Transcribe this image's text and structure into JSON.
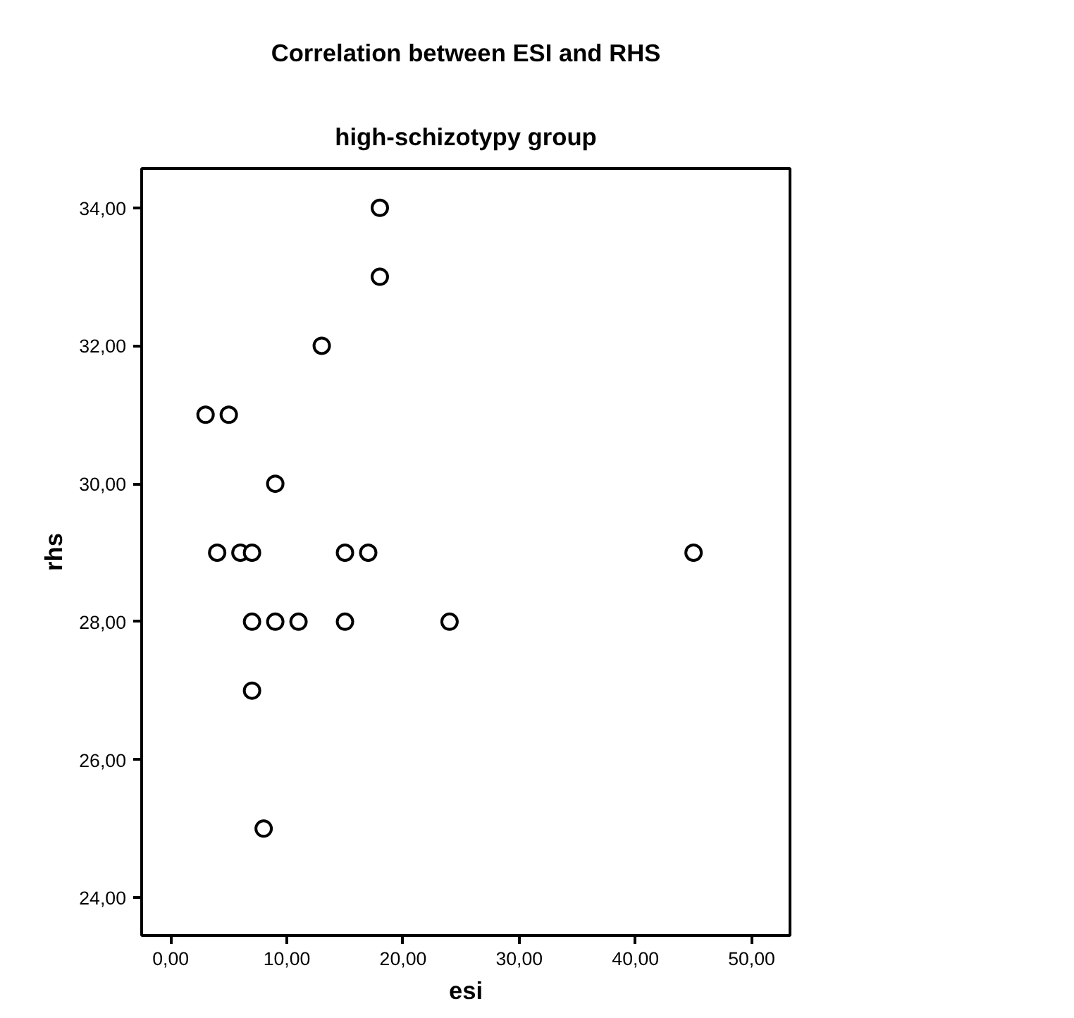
{
  "chart_data": {
    "type": "scatter",
    "title": "Correlation between ESI and RHS",
    "subtitle": "high-schizotypy group",
    "xlabel": "esi",
    "ylabel": "rhs",
    "x": [
      3,
      5,
      4,
      6,
      7,
      7,
      7,
      8,
      9,
      9,
      11,
      13,
      15,
      15,
      17,
      18,
      18,
      24,
      45
    ],
    "series": [
      {
        "color": "#000000",
        "values": [
          31,
          31,
          29,
          29,
          29,
          28,
          27,
          25,
          30,
          28,
          28,
          32,
          29,
          28,
          29,
          34,
          33,
          28,
          29
        ]
      }
    ],
    "marker": "circle",
    "grid": false,
    "xlim": [
      -2.5,
      53.3
    ],
    "ylim": [
      23.45,
      34.57
    ],
    "xticks": [
      {
        "value": 0,
        "label": "0,00"
      },
      {
        "value": 10,
        "label": "10,00"
      },
      {
        "value": 20,
        "label": "20,00"
      },
      {
        "value": 30,
        "label": "30,00"
      },
      {
        "value": 40,
        "label": "40,00"
      },
      {
        "value": 50,
        "label": "50,00"
      }
    ],
    "yticks": [
      {
        "value": 24,
        "label": "24,00"
      },
      {
        "value": 26,
        "label": "26,00"
      },
      {
        "value": 28,
        "label": "28,00"
      },
      {
        "value": 30,
        "label": "30,00"
      },
      {
        "value": 32,
        "label": "32,00"
      },
      {
        "value": 34,
        "label": "34,00"
      }
    ]
  }
}
